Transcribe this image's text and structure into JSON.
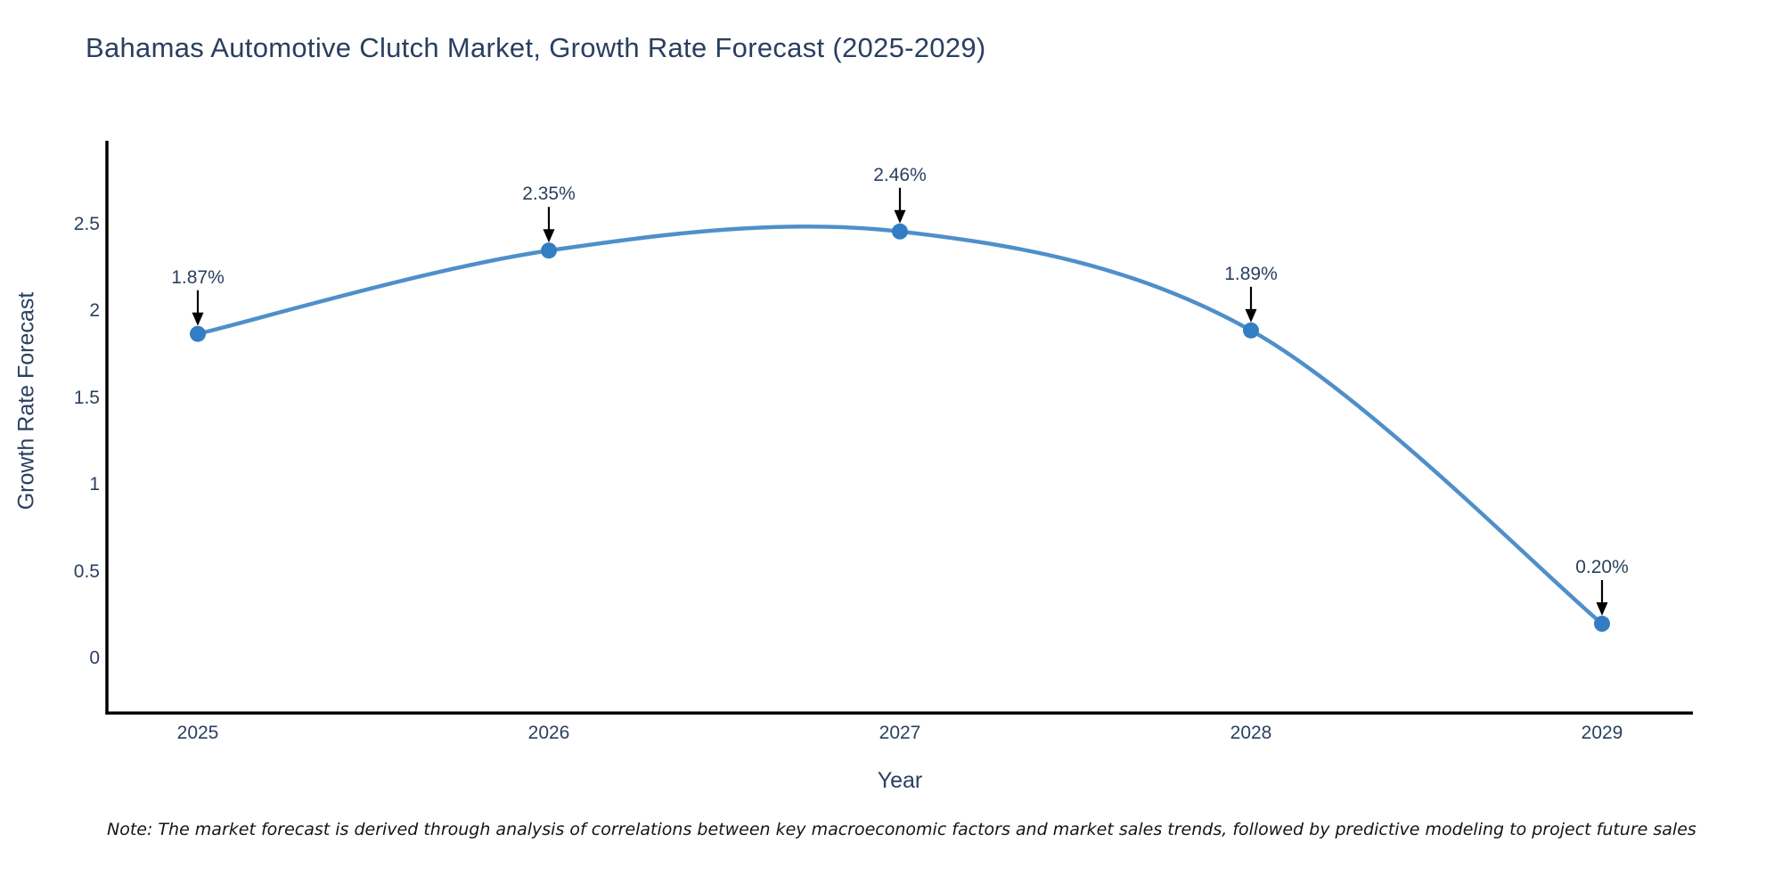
{
  "note": "Note: The market forecast is derived through analysis of correlations between key macroeconomic factors and market sales trends, followed by predictive modeling to project future sales",
  "chart_data": {
    "type": "line",
    "title": "Bahamas Automotive Clutch Market, Growth Rate Forecast (2025-2029)",
    "xlabel": "Year",
    "ylabel": "Growth Rate Forecast",
    "x": [
      2025,
      2026,
      2027,
      2028,
      2029
    ],
    "values": [
      1.87,
      2.35,
      2.46,
      1.89,
      0.2
    ],
    "point_labels": [
      "1.87%",
      "2.35%",
      "2.46%",
      "1.89%",
      "0.20%"
    ],
    "yticks": [
      0,
      0.5,
      1,
      1.5,
      2,
      2.5
    ],
    "ylim": [
      -0.32,
      2.98
    ],
    "grid": false,
    "legend": "none",
    "line_color": "#4f8fca",
    "marker_color": "#337ec2",
    "axis_color": "#000000",
    "arrow_color": "#000000",
    "text_color": "#2a3f5f"
  }
}
